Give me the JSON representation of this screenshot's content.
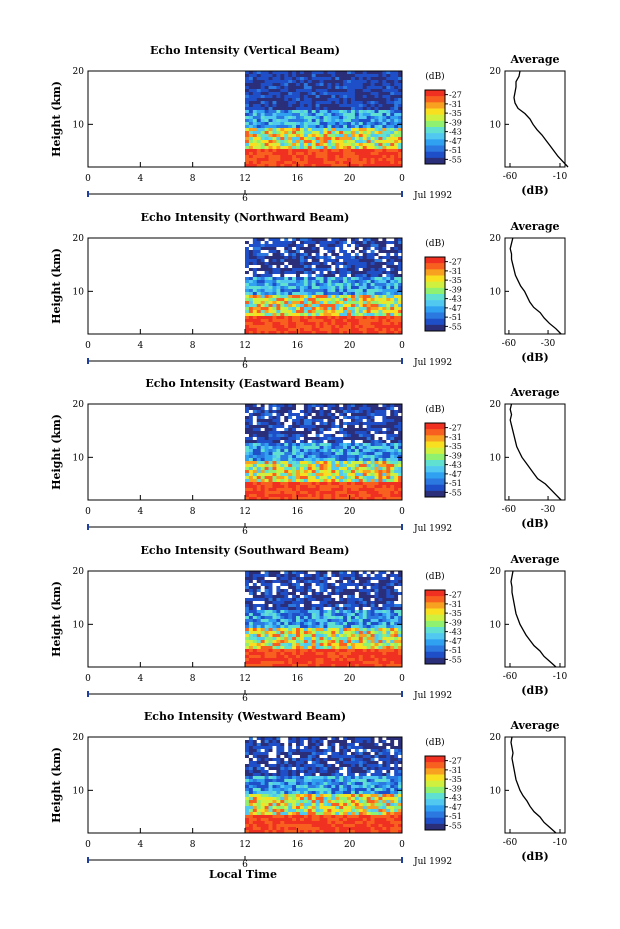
{
  "figure": {
    "xlabel": "Local Time",
    "date_label": "Jul 1992",
    "day_marker": "6",
    "ylabel": "Height (km)",
    "colorbar_unit": "(dB)",
    "avg_title": "Average",
    "avg_xlabel": "(dB)"
  },
  "colors": {
    "palette": [
      "#2b2f7a",
      "#1f4fc8",
      "#2a78e0",
      "#30a0f0",
      "#50c8f0",
      "#60e0d0",
      "#90f070",
      "#d0f040",
      "#f8e020",
      "#f8a020",
      "#f86020",
      "#f03020"
    ]
  },
  "chart_data": [
    {
      "type": "heatmap",
      "title": "Echo Intensity (Vertical Beam)",
      "x_ticks": [
        "0",
        "4",
        "8",
        "12",
        "16",
        "20",
        "0"
      ],
      "y_ticks": [
        "20",
        "10"
      ],
      "xlim": [
        0,
        24
      ],
      "ylim": [
        2,
        20
      ],
      "data_x_range": [
        12,
        24
      ],
      "colorbar_ticks": [
        "-27",
        "-31",
        "-35",
        "-39",
        "-43",
        "-47",
        "-51",
        "-55"
      ],
      "colorbar_range": [
        -57,
        -25
      ],
      "profile": [
        [
          2.0,
          -2
        ],
        [
          3.0,
          -7
        ],
        [
          4.0,
          -12
        ],
        [
          5.0,
          -16
        ],
        [
          6.0,
          -20
        ],
        [
          7.0,
          -24
        ],
        [
          8.0,
          -28
        ],
        [
          9.0,
          -33
        ],
        [
          10.0,
          -37
        ],
        [
          11.0,
          -40
        ],
        [
          12.0,
          -45
        ],
        [
          13.0,
          -52
        ],
        [
          14.0,
          -55
        ],
        [
          15.0,
          -56
        ],
        [
          16.0,
          -55
        ],
        [
          17.0,
          -54
        ],
        [
          18.0,
          -54
        ],
        [
          19.0,
          -51
        ],
        [
          20.0,
          -50
        ]
      ],
      "avg_xticks": [
        "-60",
        "-10"
      ],
      "avg_xlim": [
        -65,
        -5
      ],
      "avg_yticks": [
        "20",
        "10"
      ]
    },
    {
      "type": "heatmap",
      "title": "Echo Intensity (Northward Beam)",
      "x_ticks": [
        "0",
        "4",
        "8",
        "12",
        "16",
        "20",
        "0"
      ],
      "y_ticks": [
        "20",
        "10"
      ],
      "xlim": [
        0,
        24
      ],
      "ylim": [
        2,
        20
      ],
      "data_x_range": [
        12,
        24
      ],
      "colorbar_ticks": [
        "-27",
        "-31",
        "-35",
        "-39",
        "-43",
        "-47",
        "-51",
        "-55"
      ],
      "colorbar_range": [
        -57,
        -25
      ],
      "profile": [
        [
          2.0,
          -20
        ],
        [
          3.0,
          -24
        ],
        [
          4.0,
          -29
        ],
        [
          5.0,
          -33
        ],
        [
          6.0,
          -36
        ],
        [
          7.0,
          -41
        ],
        [
          8.0,
          -44
        ],
        [
          9.0,
          -46
        ],
        [
          10.0,
          -48
        ],
        [
          11.0,
          -51
        ],
        [
          12.0,
          -53
        ],
        [
          13.0,
          -55
        ],
        [
          14.0,
          -56
        ],
        [
          15.0,
          -57
        ],
        [
          16.0,
          -58
        ],
        [
          17.0,
          -58
        ],
        [
          18.0,
          -59
        ],
        [
          19.0,
          -58
        ],
        [
          20.0,
          -57
        ]
      ],
      "avg_xticks": [
        "-60",
        "-30"
      ],
      "avg_xlim": [
        -63,
        -17
      ],
      "avg_yticks": [
        "20",
        "10"
      ]
    },
    {
      "type": "heatmap",
      "title": "Echo Intensity (Eastward Beam)",
      "x_ticks": [
        "0",
        "4",
        "8",
        "12",
        "16",
        "20",
        "0"
      ],
      "y_ticks": [
        "20",
        "10"
      ],
      "xlim": [
        0,
        24
      ],
      "ylim": [
        2,
        20
      ],
      "data_x_range": [
        12,
        24
      ],
      "colorbar_ticks": [
        "-27",
        "-31",
        "-35",
        "-39",
        "-43",
        "-47",
        "-51",
        "-55"
      ],
      "colorbar_range": [
        -57,
        -25
      ],
      "profile": [
        [
          2.0,
          -20
        ],
        [
          3.0,
          -24
        ],
        [
          4.0,
          -28
        ],
        [
          5.0,
          -32
        ],
        [
          6.0,
          -38
        ],
        [
          7.0,
          -41
        ],
        [
          8.0,
          -44
        ],
        [
          9.0,
          -47
        ],
        [
          10.0,
          -50
        ],
        [
          11.0,
          -52
        ],
        [
          12.0,
          -54
        ],
        [
          13.0,
          -55
        ],
        [
          14.0,
          -56
        ],
        [
          15.0,
          -57
        ],
        [
          16.0,
          -58
        ],
        [
          17.0,
          -59
        ],
        [
          18.0,
          -58
        ],
        [
          19.0,
          -59
        ],
        [
          20.0,
          -58
        ]
      ],
      "avg_xticks": [
        "-60",
        "-30"
      ],
      "avg_xlim": [
        -63,
        -17
      ],
      "avg_yticks": [
        "20",
        "10"
      ]
    },
    {
      "type": "heatmap",
      "title": "Echo Intensity (Southward Beam)",
      "x_ticks": [
        "0",
        "4",
        "8",
        "12",
        "16",
        "20",
        "0"
      ],
      "y_ticks": [
        "20",
        "10"
      ],
      "xlim": [
        0,
        24
      ],
      "ylim": [
        2,
        20
      ],
      "data_x_range": [
        12,
        24
      ],
      "colorbar_ticks": [
        "-27",
        "-31",
        "-35",
        "-39",
        "-43",
        "-47",
        "-51",
        "-55"
      ],
      "colorbar_range": [
        -57,
        -25
      ],
      "profile": [
        [
          2.0,
          -14
        ],
        [
          3.0,
          -20
        ],
        [
          4.0,
          -26
        ],
        [
          5.0,
          -30
        ],
        [
          6.0,
          -36
        ],
        [
          7.0,
          -40
        ],
        [
          8.0,
          -44
        ],
        [
          9.0,
          -47
        ],
        [
          10.0,
          -50
        ],
        [
          11.0,
          -52
        ],
        [
          12.0,
          -54
        ],
        [
          13.0,
          -55
        ],
        [
          14.0,
          -56
        ],
        [
          15.0,
          -57
        ],
        [
          16.0,
          -58
        ],
        [
          17.0,
          -58
        ],
        [
          18.0,
          -59
        ],
        [
          19.0,
          -58
        ],
        [
          20.0,
          -57
        ]
      ],
      "avg_xticks": [
        "-60",
        "-10"
      ],
      "avg_xlim": [
        -65,
        -5
      ],
      "avg_yticks": [
        "20",
        "10"
      ]
    },
    {
      "type": "heatmap",
      "title": "Echo Intensity (Westward Beam)",
      "x_ticks": [
        "0",
        "4",
        "8",
        "12",
        "16",
        "20",
        "0"
      ],
      "y_ticks": [
        "20",
        "10"
      ],
      "xlim": [
        0,
        24
      ],
      "ylim": [
        2,
        20
      ],
      "data_x_range": [
        12,
        24
      ],
      "colorbar_ticks": [
        "-27",
        "-31",
        "-35",
        "-39",
        "-43",
        "-47",
        "-51",
        "-55"
      ],
      "colorbar_range": [
        -57,
        -25
      ],
      "profile": [
        [
          2.0,
          -14
        ],
        [
          3.0,
          -20
        ],
        [
          4.0,
          -26
        ],
        [
          5.0,
          -30
        ],
        [
          6.0,
          -36
        ],
        [
          7.0,
          -40
        ],
        [
          8.0,
          -43
        ],
        [
          9.0,
          -47
        ],
        [
          10.0,
          -50
        ],
        [
          11.0,
          -52
        ],
        [
          12.0,
          -54
        ],
        [
          13.0,
          -55
        ],
        [
          14.0,
          -56
        ],
        [
          15.0,
          -57
        ],
        [
          16.0,
          -58
        ],
        [
          17.0,
          -57
        ],
        [
          18.0,
          -58
        ],
        [
          19.0,
          -59
        ],
        [
          20.0,
          -58
        ]
      ],
      "avg_xticks": [
        "-60",
        "-10"
      ],
      "avg_xlim": [
        -65,
        -5
      ],
      "avg_yticks": [
        "20",
        "10"
      ]
    }
  ]
}
